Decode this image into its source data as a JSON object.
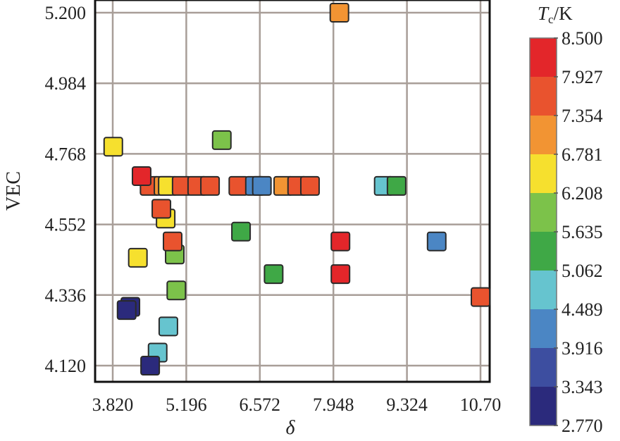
{
  "chart_data": {
    "type": "scatter",
    "title": "",
    "xlabel": "δ",
    "ylabel": "VEC",
    "xlim": [
      3.82,
      10.7
    ],
    "ylim": [
      4.12,
      5.2
    ],
    "x_ticks": [
      "3.820",
      "5.196",
      "6.572",
      "7.948",
      "9.324",
      "10.70"
    ],
    "y_ticks": [
      "4.120",
      "4.336",
      "4.552",
      "4.768",
      "4.984",
      "5.200"
    ],
    "grid": true,
    "colorbar": {
      "label_main": "T",
      "label_sub": "c",
      "label_unit": "/K",
      "range": [
        2.77,
        8.5
      ],
      "ticks": [
        "8.500",
        "7.927",
        "7.354",
        "6.781",
        "6.208",
        "5.635",
        "5.062",
        "4.489",
        "3.916",
        "3.343",
        "2.770"
      ],
      "colors": [
        "#e3262a",
        "#e9532e",
        "#f29433",
        "#f6e02e",
        "#7cc24a",
        "#3fa846",
        "#66c4cf",
        "#4b86c4",
        "#3d4ea0",
        "#2b2a7c"
      ]
    },
    "points": [
      {
        "x": 8.06,
        "y": 5.2,
        "tc": 7.0
      },
      {
        "x": 3.83,
        "y": 4.79,
        "tc": 6.5
      },
      {
        "x": 5.86,
        "y": 4.81,
        "tc": 5.8
      },
      {
        "x": 4.51,
        "y": 4.67,
        "tc": 7.6
      },
      {
        "x": 4.77,
        "y": 4.67,
        "tc": 7.1
      },
      {
        "x": 4.85,
        "y": 4.67,
        "tc": 6.5
      },
      {
        "x": 5.11,
        "y": 4.67,
        "tc": 7.6
      },
      {
        "x": 5.4,
        "y": 4.67,
        "tc": 7.6
      },
      {
        "x": 5.64,
        "y": 4.67,
        "tc": 7.6
      },
      {
        "x": 6.17,
        "y": 4.67,
        "tc": 7.6
      },
      {
        "x": 6.48,
        "y": 4.67,
        "tc": 4.2
      },
      {
        "x": 6.61,
        "y": 4.67,
        "tc": 4.2
      },
      {
        "x": 7.01,
        "y": 4.67,
        "tc": 7.0
      },
      {
        "x": 7.27,
        "y": 4.67,
        "tc": 7.6
      },
      {
        "x": 7.51,
        "y": 4.67,
        "tc": 7.6
      },
      {
        "x": 4.36,
        "y": 4.7,
        "tc": 8.3
      },
      {
        "x": 8.89,
        "y": 4.67,
        "tc": 4.8
      },
      {
        "x": 9.13,
        "y": 4.67,
        "tc": 5.6
      },
      {
        "x": 4.81,
        "y": 4.57,
        "tc": 6.5
      },
      {
        "x": 4.73,
        "y": 4.6,
        "tc": 7.6
      },
      {
        "x": 6.22,
        "y": 4.53,
        "tc": 5.6
      },
      {
        "x": 4.98,
        "y": 4.46,
        "tc": 5.9
      },
      {
        "x": 4.94,
        "y": 4.5,
        "tc": 7.6
      },
      {
        "x": 4.29,
        "y": 4.45,
        "tc": 6.5
      },
      {
        "x": 8.08,
        "y": 4.5,
        "tc": 8.1
      },
      {
        "x": 9.88,
        "y": 4.5,
        "tc": 4.2
      },
      {
        "x": 6.83,
        "y": 4.4,
        "tc": 5.6
      },
      {
        "x": 8.08,
        "y": 4.4,
        "tc": 8.1
      },
      {
        "x": 5.01,
        "y": 4.35,
        "tc": 5.8
      },
      {
        "x": 10.7,
        "y": 4.33,
        "tc": 7.6
      },
      {
        "x": 4.15,
        "y": 4.3,
        "tc": 3.2
      },
      {
        "x": 4.08,
        "y": 4.29,
        "tc": 3.0
      },
      {
        "x": 4.86,
        "y": 4.24,
        "tc": 4.9
      },
      {
        "x": 4.66,
        "y": 4.16,
        "tc": 4.9
      },
      {
        "x": 4.52,
        "y": 4.12,
        "tc": 3.0
      }
    ]
  }
}
